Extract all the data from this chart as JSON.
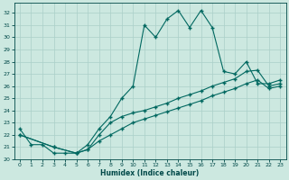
{
  "xlabel": "Humidex (Indice chaleur)",
  "bg_color": "#cce8e0",
  "grid_color": "#aacfc8",
  "line_color": "#006860",
  "xlim": [
    -0.5,
    23.5
  ],
  "ylim": [
    20.0,
    32.8
  ],
  "yticks": [
    20,
    21,
    22,
    23,
    24,
    25,
    26,
    27,
    28,
    29,
    30,
    31,
    32
  ],
  "xticks": [
    0,
    1,
    2,
    3,
    4,
    5,
    6,
    7,
    8,
    9,
    10,
    11,
    12,
    13,
    14,
    15,
    16,
    17,
    18,
    19,
    20,
    21,
    22,
    23
  ],
  "line1_x": [
    0,
    1,
    2,
    3,
    4,
    5,
    6,
    7,
    8,
    9,
    10,
    11,
    12,
    13,
    14,
    15,
    16,
    17,
    18,
    19,
    20,
    21,
    22,
    23
  ],
  "line1_y": [
    22.5,
    21.2,
    21.2,
    20.5,
    20.5,
    20.5,
    21.2,
    22.5,
    23.5,
    25.0,
    26.0,
    31.0,
    30.0,
    31.5,
    32.2,
    30.8,
    32.2,
    30.8,
    27.2,
    27.0,
    28.0,
    26.2,
    26.2,
    26.5
  ],
  "line2_x": [
    0,
    3,
    5,
    6,
    7,
    8,
    9,
    10,
    11,
    12,
    13,
    14,
    15,
    16,
    17,
    18,
    19,
    20,
    21,
    22,
    23
  ],
  "line2_y": [
    22.0,
    21.0,
    20.5,
    20.8,
    22.0,
    23.0,
    23.5,
    23.8,
    24.0,
    24.3,
    24.6,
    25.0,
    25.3,
    25.6,
    26.0,
    26.3,
    26.6,
    27.2,
    27.3,
    26.0,
    26.2
  ],
  "line3_x": [
    0,
    3,
    5,
    6,
    7,
    8,
    9,
    10,
    11,
    12,
    13,
    14,
    15,
    16,
    17,
    18,
    19,
    20,
    21,
    22,
    23
  ],
  "line3_y": [
    22.0,
    21.0,
    20.5,
    20.8,
    21.5,
    22.0,
    22.5,
    23.0,
    23.3,
    23.6,
    23.9,
    24.2,
    24.5,
    24.8,
    25.2,
    25.5,
    25.8,
    26.2,
    26.5,
    25.8,
    26.0
  ]
}
